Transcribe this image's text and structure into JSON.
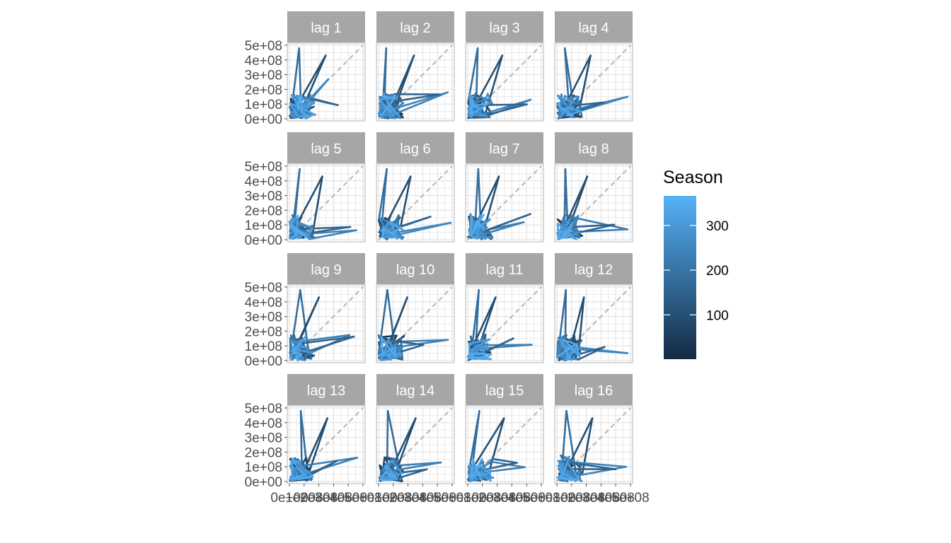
{
  "chart_data": {
    "type": "line",
    "facets": [
      "lag 1",
      "lag 2",
      "lag 3",
      "lag 4",
      "lag 5",
      "lag 6",
      "lag 7",
      "lag 8",
      "lag 9",
      "lag 10",
      "lag 11",
      "lag 12",
      "lag 13",
      "lag 14",
      "lag 15",
      "lag 16"
    ],
    "y_ticks": [
      "0e+00",
      "1e+08",
      "2e+08",
      "3e+08",
      "4e+08",
      "5e+08"
    ],
    "x_ticks": [
      "0e+00",
      "1e+08",
      "2e+08",
      "3e+08",
      "4e+08",
      "5e+08"
    ],
    "xlim": [
      0,
      500000000
    ],
    "ylim": [
      0,
      500000000
    ],
    "reference_line": "y = x (dashed)",
    "grid": true,
    "legend": {
      "title": "Season",
      "ticks": [
        "100",
        "200",
        "300"
      ],
      "tick_values": [
        100,
        200,
        300
      ],
      "range": [
        1,
        366
      ],
      "color_low": "#132B43",
      "color_high": "#56B1F7",
      "position": "right"
    },
    "strip_fill": "#a6a6a6",
    "peaks": [
      {
        "lag": 1,
        "x": 265000000,
        "y": 270000000,
        "season": 300
      },
      {
        "lag": 2,
        "x": 470000000,
        "y": 180000000,
        "season": 280
      },
      {
        "lag": 4,
        "x": 480000000,
        "y": 150000000,
        "season": 290
      },
      {
        "lag": 6,
        "x": 490000000,
        "y": 115000000,
        "season": 300
      },
      {
        "lag": 8,
        "x": 480000000,
        "y": 70000000,
        "season": 250
      },
      {
        "lag": 12,
        "x": 480000000,
        "y": 50000000,
        "season": 300
      },
      {
        "lag": 16,
        "x": 470000000,
        "y": 100000000,
        "season": 300
      }
    ]
  }
}
